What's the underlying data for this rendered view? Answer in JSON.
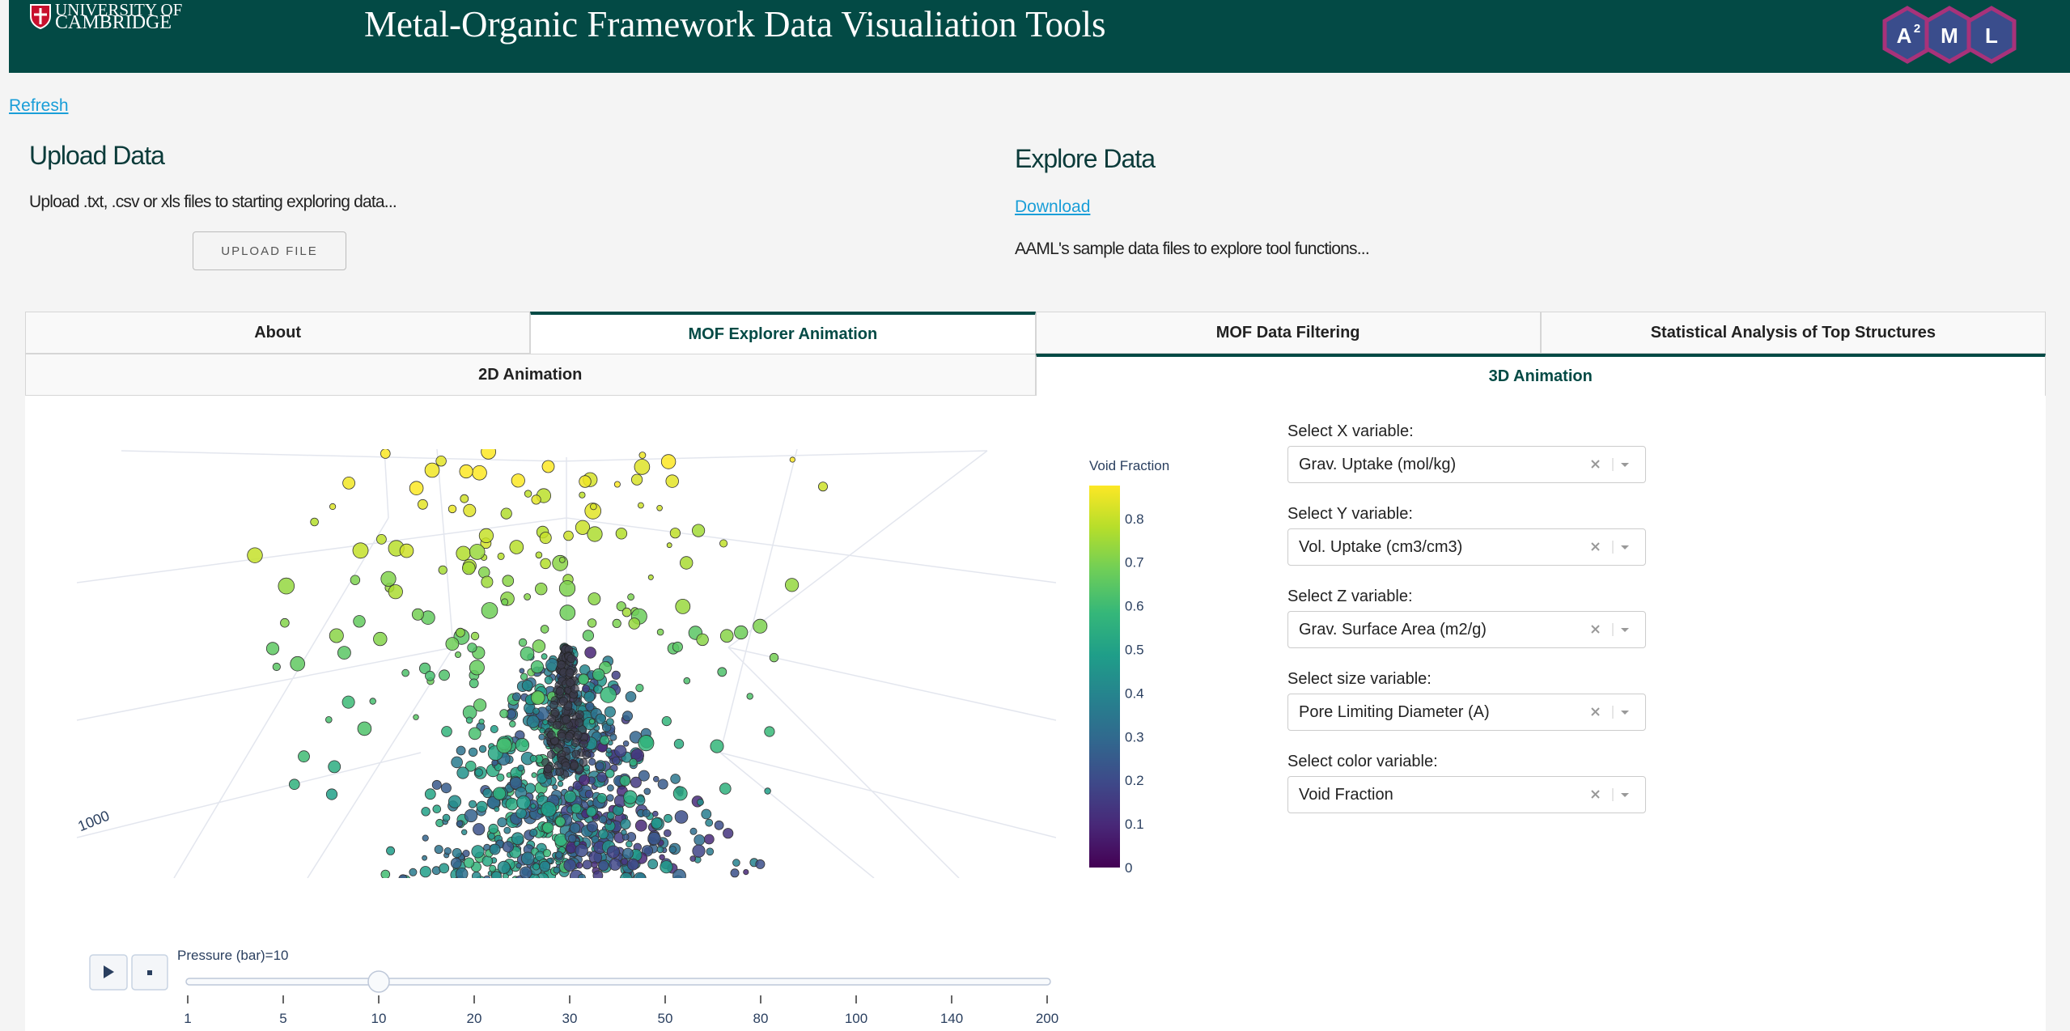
{
  "header": {
    "university": "UNIVERSITY OF",
    "university2": "CAMBRIDGE",
    "title": "Metal-Organic Framework Data Visualiation Tools",
    "logo": [
      "A",
      "2",
      "M",
      "L"
    ]
  },
  "refresh": "Refresh",
  "upload": {
    "title": "Upload Data",
    "text": "Upload .txt, .csv or xls files to starting exploring data...",
    "button": "UPLOAD FILE"
  },
  "explore": {
    "title": "Explore Data",
    "link": "Download",
    "text": "AAML's sample data files to explore tool functions..."
  },
  "tabs": [
    "About",
    "MOF Explorer Animation",
    "MOF Data Filtering",
    "Statistical Analysis of Top Structures"
  ],
  "active_tab": 1,
  "subtabs": [
    "2D Animation",
    "3D Animation"
  ],
  "active_subtab": 1,
  "plot": {
    "axis_label": "1000",
    "colorbar": {
      "title": "Void Fraction",
      "ticks": [
        0,
        0.1,
        0.2,
        0.3,
        0.4,
        0.5,
        0.6,
        0.7,
        0.8
      ]
    },
    "slider": {
      "label": "Pressure (bar)=10",
      "steps": [
        1,
        5,
        10,
        20,
        30,
        50,
        80,
        100,
        140,
        200
      ],
      "active": 2
    }
  },
  "controls": [
    {
      "label": "Select X variable:",
      "value": "Grav. Uptake (mol/kg)"
    },
    {
      "label": "Select Y variable:",
      "value": "Vol. Uptake (cm3/cm3)"
    },
    {
      "label": "Select Z variable:",
      "value": "Grav. Surface Area (m2/g)"
    },
    {
      "label": "Select size variable:",
      "value": "Pore Limiting Diameter (A)"
    },
    {
      "label": "Select color variable:",
      "value": "Void Fraction"
    }
  ]
}
